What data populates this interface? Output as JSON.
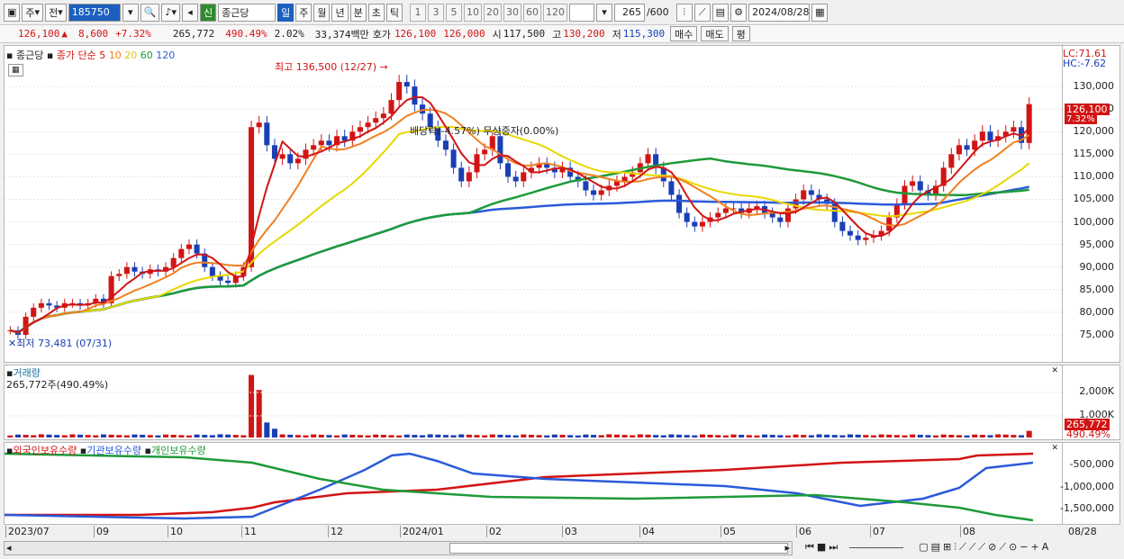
{
  "toolbar": {
    "period_type": "주",
    "view_mode": "전",
    "code": "185750",
    "stock_tag": "신",
    "stock_name": "종근당",
    "periods": [
      "일",
      "주",
      "월",
      "년",
      "분",
      "초",
      "틱"
    ],
    "active_period": "일",
    "minutes": [
      "1",
      "3",
      "5",
      "10",
      "20",
      "30",
      "60",
      "120"
    ],
    "count": "265",
    "count_max": "/600",
    "date": "2024/08/28"
  },
  "quote": {
    "price": "126,100",
    "change": "8,600",
    "change_pct": "+7.32%",
    "volume": "265,772",
    "volume_ratio": "490.49%",
    "turnover_pct": "2.02%",
    "amount": "33,374백만",
    "bid_label": "호가",
    "bid1": "126,100",
    "bid2": "126,000",
    "open_label": "시",
    "open": "117,500",
    "high_label": "고",
    "high": "130,200",
    "low_label": "저",
    "low": "115,300",
    "buy_label": "매수",
    "sell_label": "매도",
    "eval_label": "평"
  },
  "price_panel": {
    "legend_name": "종근당",
    "legend_ma": "종가 단순",
    "ma_periods": [
      "5",
      "10",
      "20",
      "60",
      "120"
    ],
    "ma_colors": [
      "#d21414",
      "#f08020",
      "#e8d800",
      "#1e9a3a",
      "#2a5ad8"
    ],
    "high_annotation": "최고 136,500 (12/27)",
    "low_annotation": "최저 73,481 (07/31)",
    "event_annotation": "배당락(-4.57%)",
    "event_annotation2": "무상증자(0.00%)",
    "lc": "LC:71.61",
    "hc": "HC:-7.62",
    "last_price_tag": "126,100",
    "last_pct_tag": "7.32%",
    "y_ticks": [
      "130,000",
      "125,000",
      "120,000",
      "115,000",
      "110,000",
      "105,000",
      "100,000",
      "95,000",
      "90,000",
      "85,000",
      "80,000",
      "75,000"
    ]
  },
  "volume_panel": {
    "title": "거래량",
    "value": "265,772주(490.49%)",
    "y_ticks": [
      "2,000K",
      "1,000K"
    ],
    "last_tag": "265,772",
    "last_pct": "490.49%"
  },
  "holding_panel": {
    "legend": [
      "외국인보유수량",
      "기관보유수량",
      "개인보유수량"
    ],
    "legend_colors": [
      "#d21414",
      "#2a5ad8",
      "#1e9a3a"
    ],
    "y_ticks": [
      "-500,000",
      "-1,000,000",
      "-1,500,000"
    ]
  },
  "x_axis": {
    "labels": [
      "2023/07",
      "09",
      "10",
      "11",
      "12",
      "2024/01",
      "02",
      "03",
      "04",
      "05",
      "06",
      "07",
      "08"
    ],
    "end_label": "08/28"
  },
  "chart_data": {
    "type": "candlestick",
    "x_start": "2023/07",
    "x_end": "2024/08/28",
    "ylim": [
      71000,
      137000
    ],
    "closes": [
      76000,
      75000,
      79000,
      81000,
      82000,
      81500,
      81000,
      82000,
      82000,
      81500,
      82000,
      83000,
      82000,
      88000,
      88500,
      90000,
      89000,
      88500,
      89500,
      89000,
      90000,
      92000,
      94000,
      95000,
      93000,
      90000,
      88000,
      87000,
      86500,
      88000,
      90000,
      121000,
      122000,
      117000,
      114000,
      115000,
      113000,
      114000,
      116000,
      117000,
      118000,
      117000,
      119000,
      118000,
      120000,
      121000,
      122000,
      123000,
      124000,
      127000,
      131000,
      130000,
      126000,
      124000,
      121000,
      118000,
      116000,
      112000,
      109000,
      111000,
      115000,
      116000,
      119000,
      113000,
      110000,
      109000,
      111000,
      112000,
      113000,
      112000,
      111000,
      112000,
      110000,
      109000,
      107000,
      106000,
      107000,
      108000,
      109000,
      110000,
      111000,
      113000,
      115000,
      112000,
      109000,
      106000,
      102000,
      100000,
      99000,
      100000,
      101000,
      102000,
      103000,
      103000,
      102000,
      103000,
      103500,
      102000,
      101000,
      100000,
      103000,
      105000,
      107000,
      106000,
      105000,
      104000,
      100000,
      98000,
      97000,
      96000,
      96500,
      97000,
      98000,
      101000,
      104000,
      108000,
      109000,
      107000,
      106000,
      108000,
      112000,
      115000,
      117000,
      116000,
      118000,
      120000,
      118000,
      119000,
      120000,
      121000,
      117500,
      126100
    ],
    "ma60_end": 108000,
    "ma120_end": 106500
  }
}
